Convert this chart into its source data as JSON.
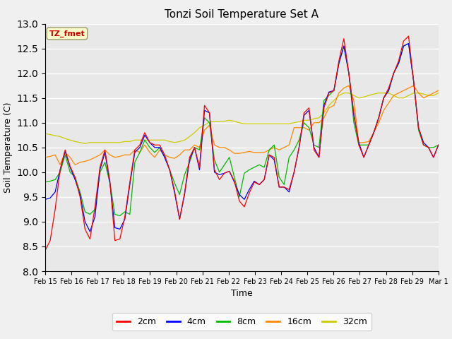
{
  "title": "Tonzi Soil Temperature Set A",
  "xlabel": "Time",
  "ylabel": "Soil Temperature (C)",
  "ylim": [
    8.0,
    13.0
  ],
  "yticks": [
    8.0,
    8.5,
    9.0,
    9.5,
    10.0,
    10.5,
    11.0,
    11.5,
    12.0,
    12.5,
    13.0
  ],
  "xtick_labels": [
    "Feb 15",
    "Feb 16",
    "Feb 17",
    "Feb 18",
    "Feb 19",
    "Feb 20",
    "Feb 21",
    "Feb 22",
    "Feb 23",
    "Feb 24",
    "Feb 25",
    "Feb 26",
    "Feb 27",
    "Feb 28",
    "Feb 29",
    "Mar 1"
  ],
  "annotation": "TZ_fmet",
  "annotation_color": "#cc0000",
  "annotation_bg": "#ffffcc",
  "annotation_border": "#999966",
  "fig_bg": "#f0f0f0",
  "ax_bg": "#e8e8e8",
  "lines": {
    "2cm": {
      "color": "#ff0000",
      "data": [
        8.42,
        8.62,
        9.25,
        10.05,
        10.45,
        10.12,
        9.9,
        9.5,
        8.85,
        8.65,
        9.3,
        10.1,
        10.45,
        9.82,
        8.62,
        8.65,
        9.1,
        9.8,
        10.45,
        10.55,
        10.8,
        10.6,
        10.55,
        10.55,
        10.35,
        10.05,
        9.62,
        9.05,
        9.58,
        10.3,
        10.5,
        10.1,
        11.35,
        11.2,
        10.05,
        9.85,
        9.98,
        10.02,
        9.82,
        9.42,
        9.3,
        9.58,
        9.8,
        9.75,
        9.85,
        10.35,
        10.3,
        9.7,
        9.7,
        9.65,
        10.0,
        10.5,
        11.2,
        11.3,
        10.45,
        10.3,
        11.3,
        11.6,
        11.65,
        12.25,
        12.7,
        12.0,
        11.2,
        10.55,
        10.3,
        10.55,
        10.8,
        11.1,
        11.5,
        11.7,
        12.0,
        12.25,
        12.65,
        12.75,
        11.85,
        10.9,
        10.55,
        10.5,
        10.3,
        10.55
      ]
    },
    "4cm": {
      "color": "#0000ff",
      "data": [
        9.45,
        9.48,
        9.6,
        10.05,
        10.42,
        10.1,
        9.85,
        9.55,
        9.0,
        8.8,
        9.1,
        10.05,
        10.4,
        9.78,
        8.88,
        8.85,
        9.05,
        9.75,
        10.4,
        10.5,
        10.75,
        10.6,
        10.5,
        10.5,
        10.3,
        10.05,
        9.58,
        9.05,
        9.55,
        10.25,
        10.5,
        10.05,
        11.25,
        11.2,
        10.0,
        9.95,
        9.98,
        10.02,
        9.8,
        9.55,
        9.45,
        9.65,
        9.82,
        9.75,
        9.85,
        10.35,
        10.25,
        9.7,
        9.7,
        9.6,
        10.0,
        10.5,
        11.15,
        11.25,
        10.5,
        10.3,
        11.35,
        11.62,
        11.65,
        12.2,
        12.55,
        12.0,
        11.15,
        10.6,
        10.3,
        10.55,
        10.8,
        11.1,
        11.5,
        11.65,
        12.0,
        12.2,
        12.55,
        12.6,
        11.85,
        10.9,
        10.6,
        10.5,
        10.3,
        10.55
      ]
    },
    "8cm": {
      "color": "#00bb00",
      "data": [
        9.8,
        9.82,
        9.85,
        10.0,
        10.35,
        10.0,
        9.9,
        9.6,
        9.2,
        9.15,
        9.25,
        10.0,
        10.2,
        9.78,
        9.15,
        9.12,
        9.2,
        9.15,
        10.2,
        10.4,
        10.65,
        10.5,
        10.4,
        10.5,
        10.3,
        10.05,
        9.78,
        9.55,
        9.95,
        10.2,
        10.5,
        10.45,
        11.1,
        11.0,
        10.25,
        10.0,
        10.15,
        10.3,
        9.9,
        9.5,
        9.98,
        10.05,
        10.1,
        10.15,
        10.1,
        10.45,
        10.55,
        9.9,
        9.75,
        10.3,
        10.45,
        10.65,
        11.0,
        10.9,
        10.55,
        10.5,
        11.45,
        11.55,
        11.65,
        12.2,
        12.55,
        12.0,
        11.0,
        10.55,
        10.55,
        10.55,
        10.8,
        11.1,
        11.5,
        11.65,
        12.0,
        12.2,
        12.55,
        12.6,
        11.85,
        10.85,
        10.55,
        10.5,
        10.5,
        10.55
      ]
    },
    "16cm": {
      "color": "#ff8800",
      "data": [
        10.3,
        10.32,
        10.35,
        10.15,
        10.4,
        10.3,
        10.15,
        10.2,
        10.22,
        10.25,
        10.3,
        10.35,
        10.45,
        10.35,
        10.3,
        10.32,
        10.35,
        10.35,
        10.45,
        10.4,
        10.55,
        10.4,
        10.3,
        10.45,
        10.35,
        10.3,
        10.28,
        10.35,
        10.45,
        10.45,
        10.55,
        10.5,
        10.85,
        10.95,
        10.55,
        10.5,
        10.5,
        10.45,
        10.38,
        10.38,
        10.4,
        10.42,
        10.4,
        10.4,
        10.4,
        10.45,
        10.5,
        10.45,
        10.5,
        10.55,
        10.9,
        10.9,
        10.9,
        10.85,
        11.0,
        11.0,
        11.1,
        11.3,
        11.35,
        11.6,
        11.7,
        11.75,
        11.45,
        10.6,
        10.6,
        10.62,
        10.8,
        11.0,
        11.25,
        11.4,
        11.55,
        11.6,
        11.65,
        11.7,
        11.75,
        11.6,
        11.5,
        11.55,
        11.6,
        11.65
      ]
    },
    "32cm": {
      "color": "#cccc00",
      "data": [
        10.78,
        10.76,
        10.74,
        10.72,
        10.68,
        10.65,
        10.62,
        10.6,
        10.58,
        10.6,
        10.6,
        10.6,
        10.6,
        10.6,
        10.6,
        10.6,
        10.62,
        10.62,
        10.65,
        10.65,
        10.65,
        10.65,
        10.65,
        10.65,
        10.65,
        10.62,
        10.6,
        10.62,
        10.65,
        10.72,
        10.8,
        10.9,
        10.95,
        11.02,
        11.02,
        11.03,
        11.03,
        11.05,
        11.03,
        11.0,
        10.98,
        10.98,
        10.98,
        10.98,
        10.98,
        10.98,
        10.98,
        10.98,
        10.98,
        10.98,
        11.0,
        11.02,
        11.05,
        11.05,
        11.08,
        11.1,
        11.2,
        11.35,
        11.45,
        11.55,
        11.6,
        11.6,
        11.55,
        11.5,
        11.52,
        11.55,
        11.58,
        11.6,
        11.6,
        11.6,
        11.55,
        11.5,
        11.5,
        11.55,
        11.6,
        11.6,
        11.58,
        11.55,
        11.55,
        11.6
      ]
    }
  },
  "legend_labels": [
    "2cm",
    "4cm",
    "8cm",
    "16cm",
    "32cm"
  ],
  "legend_colors": [
    "#ff0000",
    "#0000ff",
    "#00bb00",
    "#ff8800",
    "#cccc00"
  ]
}
